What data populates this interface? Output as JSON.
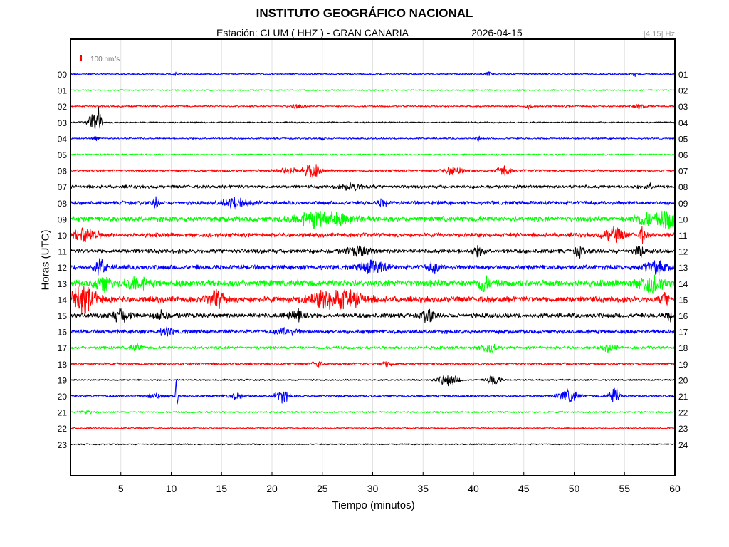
{
  "header": {
    "title": "INSTITUTO GEOGRÁFICO NACIONAL",
    "station": "Estación:  CLUM ( HHZ ) - GRAN CANARIA",
    "date": "2026-04-15",
    "freq_band": "[4 15] Hz"
  },
  "chart_data": {
    "type": "line",
    "title": "INSTITUTO GEOGRÁFICO NACIONAL",
    "xlabel": "Tiempo (minutos)",
    "ylabel": "Horas (UTC)",
    "xlim": [
      0,
      60
    ],
    "x_ticks": [
      "5",
      "10",
      "15",
      "20",
      "25",
      "30",
      "35",
      "40",
      "45",
      "50",
      "55",
      "60"
    ],
    "scale_label": "100 nm/s",
    "grid": true,
    "colors": [
      "#0000ff",
      "#00ff00",
      "#ff0000",
      "#000000"
    ],
    "left_labels": [
      "00",
      "01",
      "02",
      "03",
      "04",
      "05",
      "06",
      "07",
      "08",
      "09",
      "10",
      "11",
      "12",
      "13",
      "14",
      "15",
      "16",
      "17",
      "18",
      "19",
      "20",
      "21",
      "22",
      "23"
    ],
    "right_labels": [
      "01",
      "02",
      "03",
      "04",
      "05",
      "06",
      "07",
      "08",
      "09",
      "10",
      "11",
      "12",
      "13",
      "14",
      "15",
      "16",
      "17",
      "18",
      "19",
      "20",
      "21",
      "22",
      "23",
      "24"
    ],
    "traces": [
      {
        "hour": "00",
        "noise": 1.2,
        "bursts": [
          {
            "t": 10.5,
            "a": 3,
            "w": 0.3
          },
          {
            "t": 41.5,
            "a": 3,
            "w": 0.3
          },
          {
            "t": 56,
            "a": 3,
            "w": 0.2
          }
        ]
      },
      {
        "hour": "01",
        "noise": 1.0,
        "bursts": []
      },
      {
        "hour": "02",
        "noise": 1.3,
        "bursts": [
          {
            "t": 22.5,
            "a": 3,
            "w": 0.6
          },
          {
            "t": 45.5,
            "a": 3,
            "w": 0.3
          },
          {
            "t": 56.5,
            "a": 3,
            "w": 0.6
          }
        ]
      },
      {
        "hour": "03",
        "noise": 1.2,
        "bursts": [
          {
            "t": 2.2,
            "a": 12,
            "w": 0.5
          },
          {
            "t": 2.9,
            "a": 30,
            "w": 0.2
          }
        ]
      },
      {
        "hour": "04",
        "noise": 1.2,
        "bursts": [
          {
            "t": 2.5,
            "a": 4,
            "w": 0.3
          },
          {
            "t": 25,
            "a": 4,
            "w": 0.2
          },
          {
            "t": 40.5,
            "a": 4,
            "w": 0.2
          }
        ]
      },
      {
        "hour": "05",
        "noise": 1.2,
        "bursts": []
      },
      {
        "hour": "06",
        "noise": 1.8,
        "bursts": [
          {
            "t": 21.5,
            "a": 5,
            "w": 1.0
          },
          {
            "t": 24,
            "a": 10,
            "w": 0.8
          },
          {
            "t": 38,
            "a": 8,
            "w": 0.8
          },
          {
            "t": 43,
            "a": 8,
            "w": 0.6
          }
        ]
      },
      {
        "hour": "07",
        "noise": 2.5,
        "bursts": [
          {
            "t": 28,
            "a": 5,
            "w": 1.2
          },
          {
            "t": 57.5,
            "a": 5,
            "w": 0.4
          }
        ]
      },
      {
        "hour": "08",
        "noise": 3.0,
        "bursts": [
          {
            "t": 8.5,
            "a": 8,
            "w": 0.3
          },
          {
            "t": 16.5,
            "a": 8,
            "w": 1.2
          },
          {
            "t": 31,
            "a": 6,
            "w": 0.4
          }
        ]
      },
      {
        "hour": "09",
        "noise": 4.0,
        "bursts": [
          {
            "t": 25,
            "a": 11,
            "w": 2.8
          },
          {
            "t": 57,
            "a": 10,
            "w": 1.0
          },
          {
            "t": 59.3,
            "a": 15,
            "w": 0.9
          }
        ]
      },
      {
        "hour": "10",
        "noise": 3.3,
        "bursts": [
          {
            "t": 1.5,
            "a": 10,
            "w": 1.2
          },
          {
            "t": 54,
            "a": 10,
            "w": 1.0
          },
          {
            "t": 56.8,
            "a": 12,
            "w": 0.3
          }
        ]
      },
      {
        "hour": "11",
        "noise": 3.2,
        "bursts": [
          {
            "t": 28.5,
            "a": 6,
            "w": 1.2
          },
          {
            "t": 40.5,
            "a": 7,
            "w": 0.6
          },
          {
            "t": 50.5,
            "a": 8,
            "w": 0.4
          },
          {
            "t": 56.5,
            "a": 12,
            "w": 0.3
          }
        ]
      },
      {
        "hour": "12",
        "noise": 3.6,
        "bursts": [
          {
            "t": 3,
            "a": 10,
            "w": 0.6
          },
          {
            "t": 30,
            "a": 10,
            "w": 1.2
          },
          {
            "t": 36,
            "a": 8,
            "w": 0.6
          },
          {
            "t": 58,
            "a": 10,
            "w": 1.0
          }
        ]
      },
      {
        "hour": "13",
        "noise": 5.2,
        "bursts": [
          {
            "t": 3.2,
            "a": 14,
            "w": 0.6
          },
          {
            "t": 6.5,
            "a": 10,
            "w": 1.0
          },
          {
            "t": 41,
            "a": 14,
            "w": 0.5
          },
          {
            "t": 57.5,
            "a": 12,
            "w": 1.2
          }
        ]
      },
      {
        "hour": "14",
        "noise": 4.5,
        "bursts": [
          {
            "t": 1.2,
            "a": 19,
            "w": 1.4
          },
          {
            "t": 14.5,
            "a": 12,
            "w": 0.8
          },
          {
            "t": 26.5,
            "a": 15,
            "w": 2.5
          },
          {
            "t": 59,
            "a": 9,
            "w": 0.4
          }
        ]
      },
      {
        "hour": "15",
        "noise": 3.5,
        "bursts": [
          {
            "t": 5,
            "a": 8,
            "w": 1.0
          },
          {
            "t": 9,
            "a": 8,
            "w": 0.6
          },
          {
            "t": 22.5,
            "a": 8,
            "w": 1.0
          },
          {
            "t": 35.5,
            "a": 9,
            "w": 0.6
          },
          {
            "t": 59.5,
            "a": 8,
            "w": 0.3
          }
        ]
      },
      {
        "hour": "16",
        "noise": 3.0,
        "bursts": [
          {
            "t": 9.5,
            "a": 6,
            "w": 0.6
          },
          {
            "t": 21.5,
            "a": 5,
            "w": 1.0
          }
        ]
      },
      {
        "hour": "17",
        "noise": 2.2,
        "bursts": [
          {
            "t": 6.5,
            "a": 5,
            "w": 0.6
          },
          {
            "t": 41.5,
            "a": 7,
            "w": 0.8
          },
          {
            "t": 53.5,
            "a": 6,
            "w": 0.6
          }
        ]
      },
      {
        "hour": "18",
        "noise": 1.8,
        "bursts": [
          {
            "t": 24.5,
            "a": 6,
            "w": 0.4
          },
          {
            "t": 31.5,
            "a": 4,
            "w": 0.6
          }
        ]
      },
      {
        "hour": "19",
        "noise": 1.2,
        "bursts": [
          {
            "t": 37.5,
            "a": 9,
            "w": 1.0
          },
          {
            "t": 42,
            "a": 9,
            "w": 0.6
          }
        ]
      },
      {
        "hour": "20",
        "noise": 1.8,
        "bursts": [
          {
            "t": 10.5,
            "a": 34,
            "w": 0.15
          },
          {
            "t": 8.5,
            "a": 4,
            "w": 0.8
          },
          {
            "t": 16.5,
            "a": 4,
            "w": 1.0
          },
          {
            "t": 21,
            "a": 9,
            "w": 0.7
          },
          {
            "t": 49.5,
            "a": 9,
            "w": 1.0
          },
          {
            "t": 54,
            "a": 13,
            "w": 0.5
          }
        ]
      },
      {
        "hour": "21",
        "noise": 1.3,
        "bursts": [
          {
            "t": 1.5,
            "a": 3,
            "w": 0.6
          }
        ]
      },
      {
        "hour": "22",
        "noise": 1.0,
        "bursts": []
      },
      {
        "hour": "23",
        "noise": 1.0,
        "bursts": []
      }
    ]
  }
}
